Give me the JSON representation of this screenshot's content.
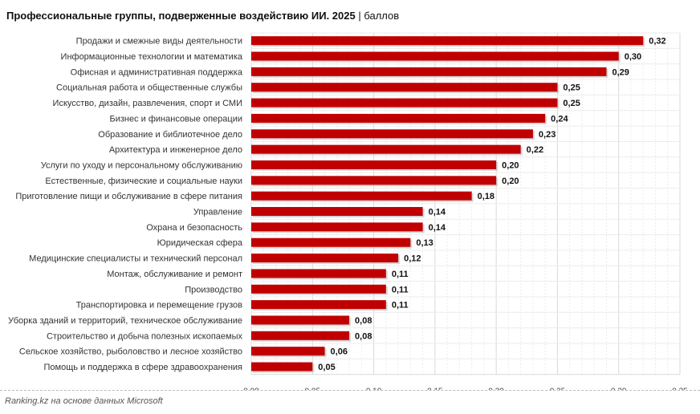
{
  "chart_data": {
    "type": "bar",
    "orientation": "horizontal",
    "title": "Профессиональные группы, подверженные воздействию ИИ. 2025",
    "subtitle": "баллов",
    "categories": [
      "Продажи и смежные виды деятельности",
      "Информационные технологии и математика",
      "Офисная и административная поддержка",
      "Социальная работа и общественные службы",
      "Искусство, дизайн, развлечения, спорт и СМИ",
      "Бизнес и финансовые операции",
      "Образование и библиотечное дело",
      "Архитектура и инженерное дело",
      "Услуги по уходу и персональному обслуживанию",
      "Естественные, физические и социальные науки",
      "Приготовление пищи и обслуживание в сфере питания",
      "Управление",
      "Охрана и безопасность",
      "Юридическая сфера",
      "Медицинские специалисты и технический персонал",
      "Монтаж, обслуживание и ремонт",
      "Производство",
      "Транспортировка и перемещение грузов",
      "Уборка зданий и территорий, техническое обслуживание",
      "Строительство и добыча полезных ископаемых",
      "Сельское хозяйство, рыболовство и лесное хозяйство",
      "Помощь и поддержка в сфере здравоохранения"
    ],
    "values": [
      0.32,
      0.3,
      0.29,
      0.25,
      0.25,
      0.24,
      0.23,
      0.22,
      0.2,
      0.2,
      0.18,
      0.14,
      0.14,
      0.13,
      0.12,
      0.11,
      0.11,
      0.11,
      0.08,
      0.08,
      0.06,
      0.05
    ],
    "data_labels": [
      "0,32",
      "0,30",
      "0,29",
      "0,25",
      "0,25",
      "0,24",
      "0,23",
      "0,22",
      "0,20",
      "0,20",
      "0,18",
      "0,14",
      "0,14",
      "0,13",
      "0,12",
      "0,11",
      "0,11",
      "0,11",
      "0,08",
      "0,08",
      "0,06",
      "0,05"
    ],
    "xlim": [
      0,
      0.35
    ],
    "xticks": [
      "0,00",
      "0,05",
      "0,10",
      "0,15",
      "0,20",
      "0,25",
      "0,30",
      "0,35"
    ],
    "xtick_values": [
      0,
      0.05,
      0.1,
      0.15,
      0.2,
      0.25,
      0.3,
      0.35
    ],
    "grid": true,
    "bar_color": "#C00000"
  },
  "footer": {
    "source": "Ranking.kz на основе данных Microsoft"
  }
}
